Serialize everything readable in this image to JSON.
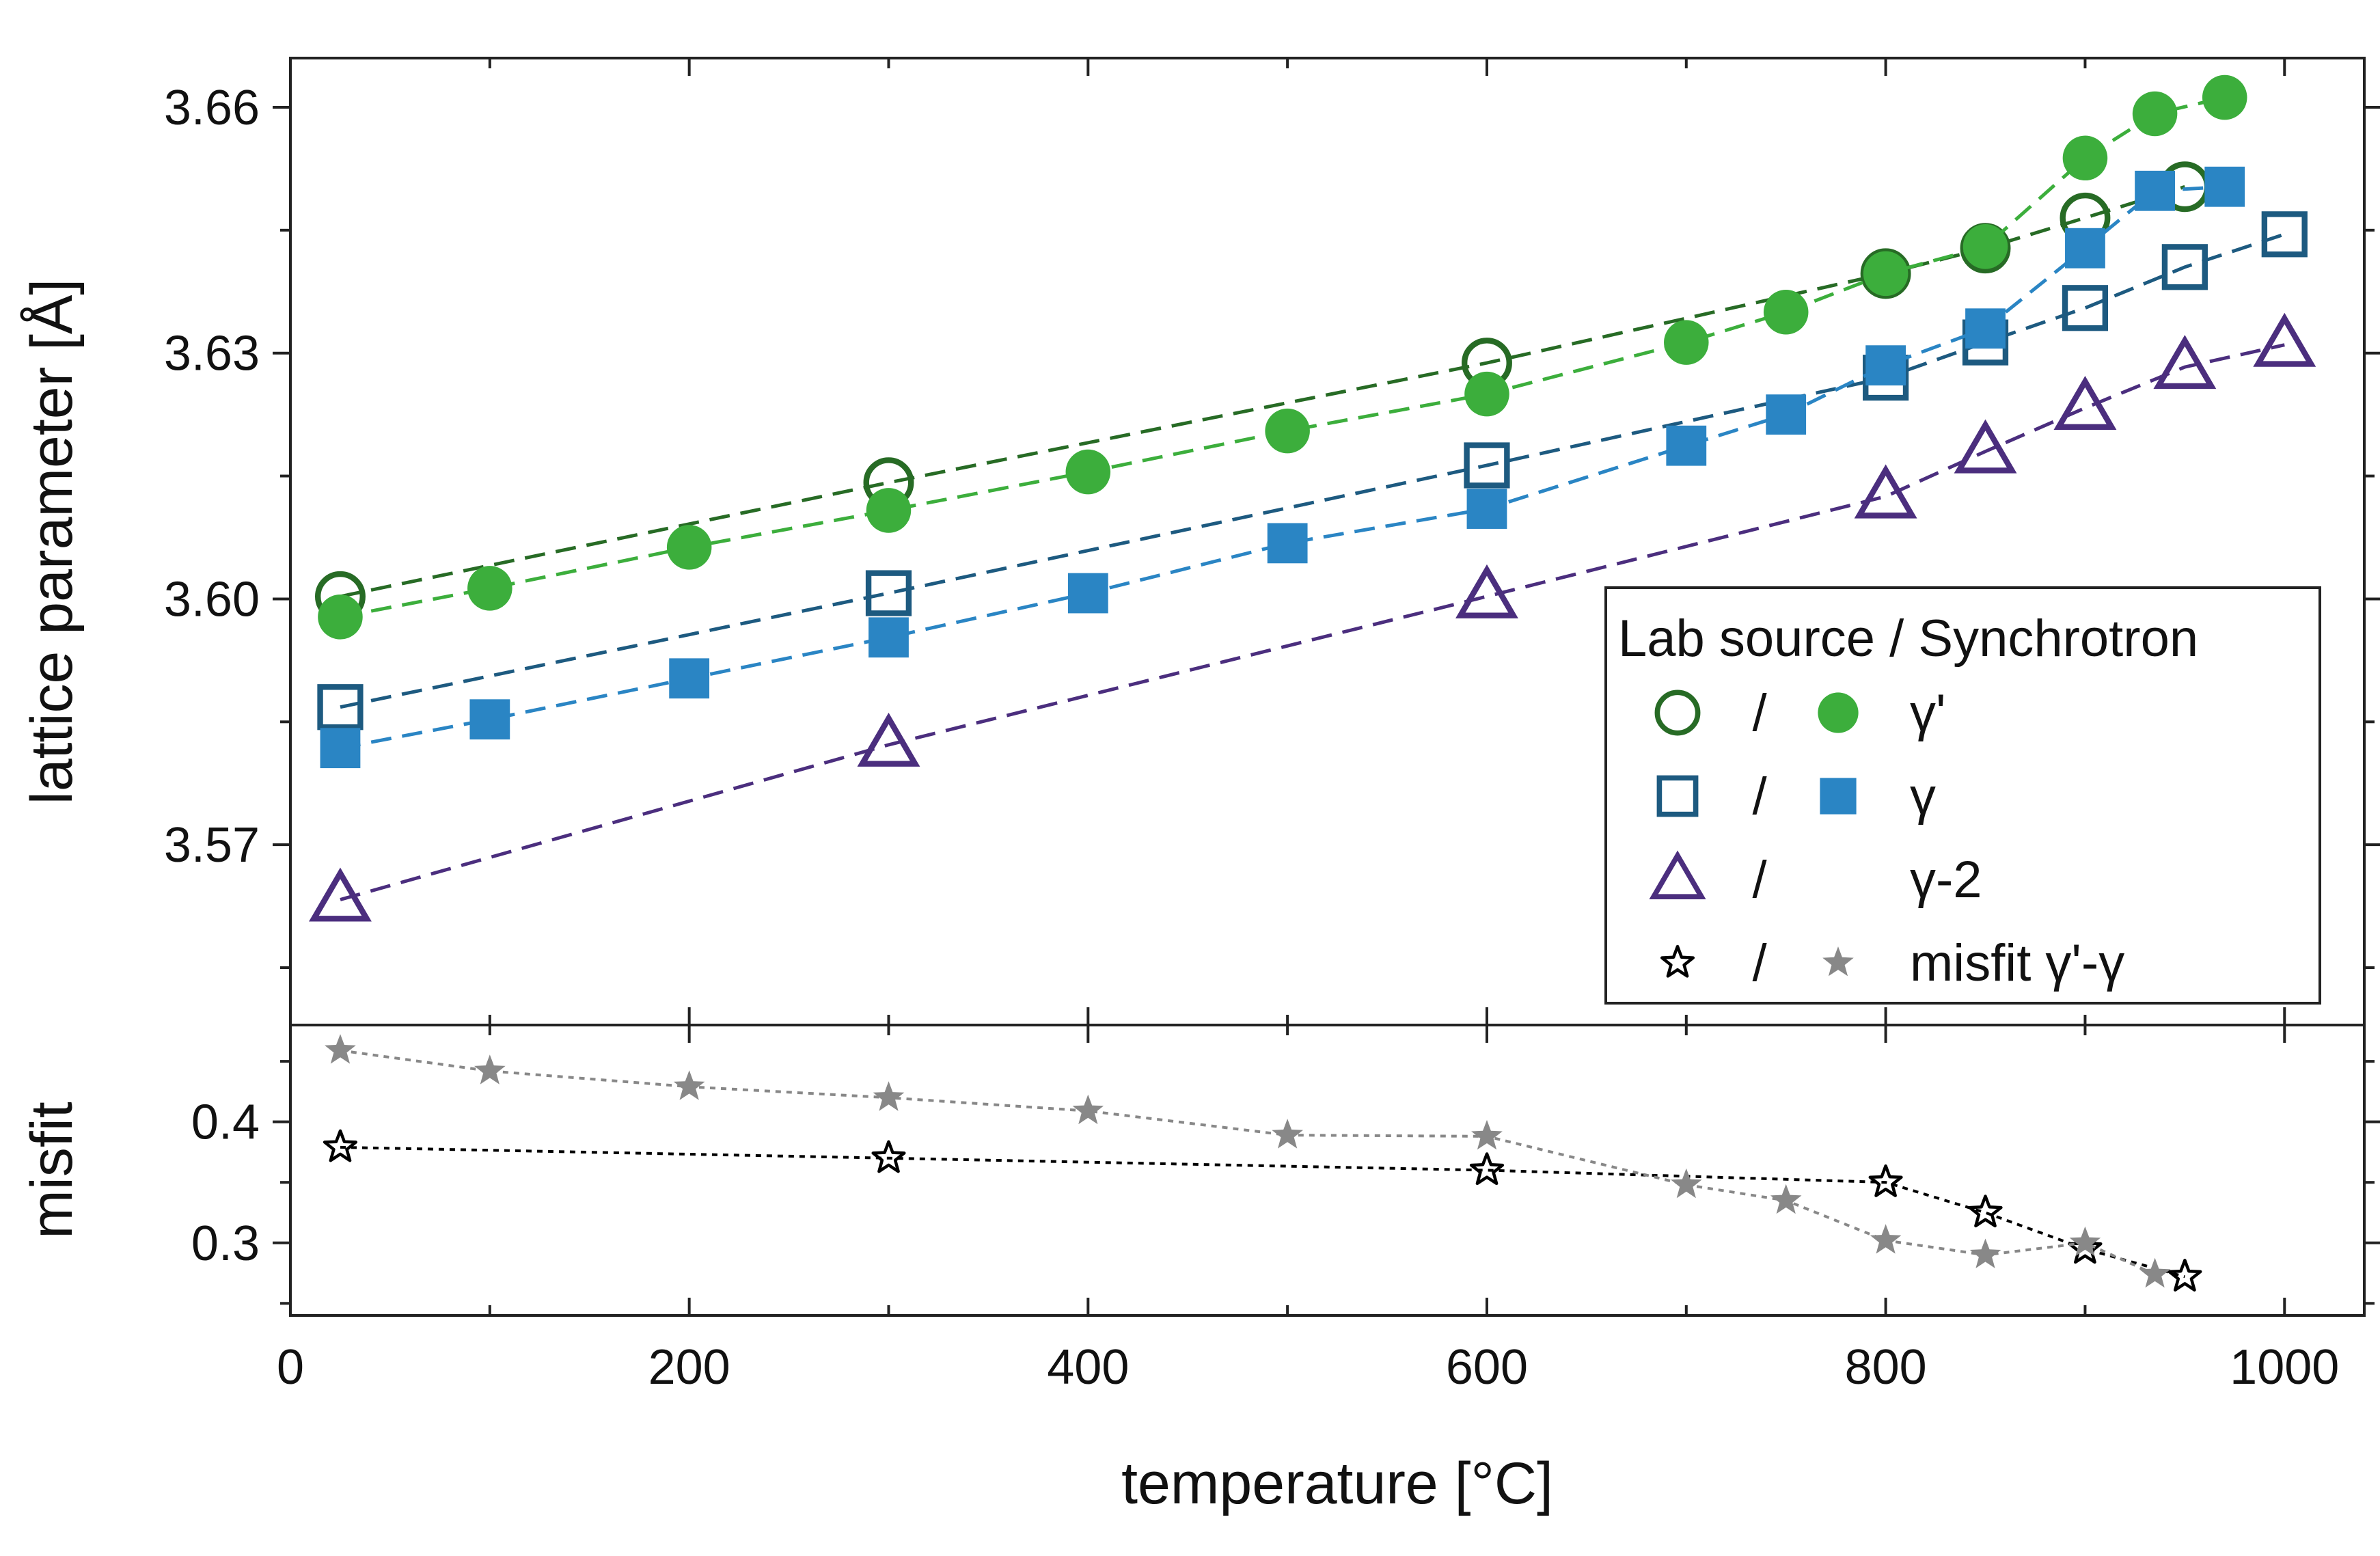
{
  "chart_data": {
    "type": "scatter",
    "x_label": "temperature [°C]",
    "x_range": [
      0,
      1040
    ],
    "x_ticks": [
      0,
      200,
      400,
      600,
      800,
      1000
    ],
    "panels": [
      {
        "id": "lattice",
        "y_label": "lattice parameter [Å]",
        "y_range": [
          3.548,
          3.666
        ],
        "y_ticks": [
          3.57,
          3.6,
          3.63,
          3.66
        ],
        "y_tick_labels": [
          "3.57",
          "3.60",
          "3.63",
          "3.66"
        ],
        "series": [
          {
            "key": "gp_lab",
            "marker": "circle-open",
            "color": "#276b25",
            "line": true,
            "x": [
              25,
              300,
              600,
              800,
              850,
              900,
              950
            ],
            "y": [
              3.6003,
              3.6142,
              3.6288,
              3.6397,
              3.6428,
              3.6465,
              3.6503
            ]
          },
          {
            "key": "gp_sync",
            "marker": "circle-filled",
            "color": "#3cae3c",
            "line": true,
            "x": [
              25,
              100,
              200,
              300,
              400,
              500,
              600,
              700,
              750,
              800,
              850,
              900,
              935,
              970
            ],
            "y": [
              3.5978,
              3.6013,
              3.6063,
              3.6108,
              3.6155,
              3.6205,
              3.625,
              3.6313,
              3.635,
              3.6397,
              3.643,
              3.6538,
              3.6592,
              3.6612
            ]
          },
          {
            "key": "g_lab",
            "marker": "square-open",
            "color": "#1d5a80",
            "line": true,
            "x": [
              25,
              300,
              600,
              800,
              850,
              900,
              950,
              1000
            ],
            "y": [
              3.5868,
              3.6007,
              3.6163,
              3.627,
              3.6313,
              3.6355,
              3.6405,
              3.6445
            ]
          },
          {
            "key": "g_sync",
            "marker": "square-filled",
            "color": "#2a85c4",
            "line": true,
            "x": [
              25,
              100,
              200,
              300,
              400,
              500,
              600,
              700,
              750,
              800,
              850,
              900,
              935,
              970
            ],
            "y": [
              3.5818,
              3.5853,
              3.5903,
              3.5953,
              3.6007,
              3.6068,
              3.611,
              3.6187,
              3.6225,
              3.6285,
              3.633,
              3.6428,
              3.6498,
              3.6503
            ]
          },
          {
            "key": "g2_lab",
            "marker": "triangle-open",
            "color": "#4b2e7e",
            "line": true,
            "x": [
              25,
              300,
              600,
              800,
              850,
              900,
              950,
              1000
            ],
            "y": [
              3.5633,
              3.5822,
              3.6003,
              3.6125,
              3.618,
              3.6233,
              3.6283,
              3.631
            ]
          }
        ]
      },
      {
        "id": "misfit",
        "y_label": "misfit",
        "y_range": [
          0.24,
          0.48
        ],
        "y_ticks": [
          0.3,
          0.4
        ],
        "y_tick_labels": [
          "0.3",
          "0.4"
        ],
        "series": [
          {
            "key": "misfit_lab",
            "marker": "star-open",
            "color": "#000000",
            "line": true,
            "x": [
              25,
              300,
              600,
              800,
              850,
              900,
              950
            ],
            "y": [
              0.379,
              0.37,
              0.36,
              0.35,
              0.325,
              0.295,
              0.272
            ]
          },
          {
            "key": "misfit_sync",
            "marker": "star-filled",
            "color": "#888888",
            "line": true,
            "x": [
              25,
              100,
              200,
              300,
              400,
              500,
              600,
              700,
              750,
              800,
              850,
              900,
              935
            ],
            "y": [
              0.459,
              0.442,
              0.429,
              0.42,
              0.409,
              0.389,
              0.388,
              0.348,
              0.335,
              0.302,
              0.29,
              0.3,
              0.274
            ]
          }
        ]
      }
    ],
    "legend": {
      "title": "Lab source / Synchrotron",
      "separator": "/",
      "position": "lower-right of upper panel",
      "rows": [
        {
          "lab": "gp_lab",
          "sync": "gp_sync",
          "label": "γ'"
        },
        {
          "lab": "g_lab",
          "sync": "g_sync",
          "label": "γ"
        },
        {
          "lab": "g2_lab",
          "sync": "",
          "label": "γ-2"
        },
        {
          "lab": "misfit_lab",
          "sync": "misfit_sync",
          "label": "misfit γ'-γ"
        }
      ]
    }
  }
}
